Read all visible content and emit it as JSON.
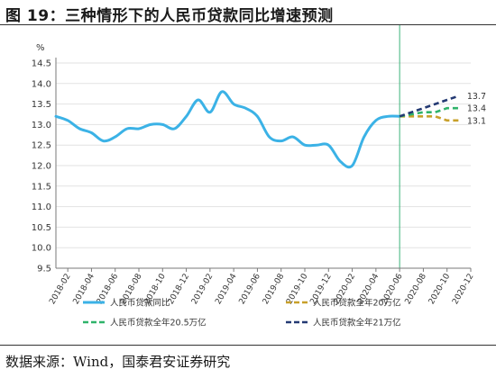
{
  "figure": {
    "title": "图  19：三种情形下的人民币贷款同比增速预测",
    "source": "数据来源：Wind，国泰君安证券研究"
  },
  "chart_data": {
    "type": "line",
    "ylabel": "%",
    "ylim": [
      9.5,
      14.5
    ],
    "yticks": [
      "9.5",
      "10.0",
      "10.5",
      "11.0",
      "11.5",
      "12.0",
      "12.5",
      "13.0",
      "13.5",
      "14.0",
      "14.5"
    ],
    "xticks": [
      "2018-02",
      "2018-04",
      "2018-06",
      "2018-08",
      "2018-10",
      "2018-12",
      "2019-02",
      "2019-04",
      "2019-06",
      "2019-08",
      "2019-10",
      "2019-12",
      "2020-02",
      "2020-04",
      "2020-06",
      "2020-08",
      "2020-10",
      "2020-12"
    ],
    "grid": true,
    "divider_at": "2020-06",
    "colors": {
      "actual": "#3bb2e6",
      "s20": "#c8a02a",
      "s205": "#2fb36a",
      "s21": "#243a73",
      "divider": "#3db37a",
      "grid": "#e2e2e2",
      "axis": "#7a7a7a"
    },
    "actual": {
      "name": "人民币贷款同比",
      "x": [
        "2018-01",
        "2018-02",
        "2018-03",
        "2018-04",
        "2018-05",
        "2018-06",
        "2018-07",
        "2018-08",
        "2018-09",
        "2018-10",
        "2018-11",
        "2018-12",
        "2019-01",
        "2019-02",
        "2019-03",
        "2019-04",
        "2019-05",
        "2019-06",
        "2019-07",
        "2019-08",
        "2019-09",
        "2019-10",
        "2019-11",
        "2019-12",
        "2020-01",
        "2020-02",
        "2020-03",
        "2020-04",
        "2020-05",
        "2020-06"
      ],
      "values": [
        13.2,
        13.1,
        12.9,
        12.8,
        12.6,
        12.7,
        12.9,
        12.9,
        13.0,
        13.0,
        12.9,
        13.2,
        13.6,
        13.3,
        13.8,
        13.5,
        13.4,
        13.2,
        12.7,
        12.6,
        12.7,
        12.5,
        12.5,
        12.5,
        12.1,
        12.0,
        12.7,
        13.1,
        13.2,
        13.2
      ]
    },
    "forecasts": [
      {
        "key": "s20",
        "name": "人民币贷款全年20万亿",
        "x": [
          "2020-06",
          "2020-07",
          "2020-08",
          "2020-09",
          "2020-10",
          "2020-11"
        ],
        "values": [
          13.2,
          13.2,
          13.2,
          13.2,
          13.1,
          13.1
        ],
        "end_label": "13.1"
      },
      {
        "key": "s205",
        "name": "人民币贷款全年20.5万亿",
        "x": [
          "2020-06",
          "2020-07",
          "2020-08",
          "2020-09",
          "2020-10",
          "2020-11"
        ],
        "values": [
          13.2,
          13.25,
          13.3,
          13.3,
          13.4,
          13.4
        ],
        "end_label": "13.4"
      },
      {
        "key": "s21",
        "name": "人民币贷款全年21万亿",
        "x": [
          "2020-06",
          "2020-07",
          "2020-08",
          "2020-09",
          "2020-10",
          "2020-11"
        ],
        "values": [
          13.2,
          13.3,
          13.4,
          13.5,
          13.6,
          13.7
        ],
        "end_label": "13.7"
      }
    ],
    "legend": [
      {
        "key": "actual",
        "label": "人民币贷款同比",
        "style": "solid"
      },
      {
        "key": "s20",
        "label": "人民币贷款全年20万亿",
        "style": "dashed"
      },
      {
        "key": "s205",
        "label": "人民币贷款全年20.5万亿",
        "style": "dashed"
      },
      {
        "key": "s21",
        "label": "人民币贷款全年21万亿",
        "style": "dashed"
      }
    ]
  }
}
